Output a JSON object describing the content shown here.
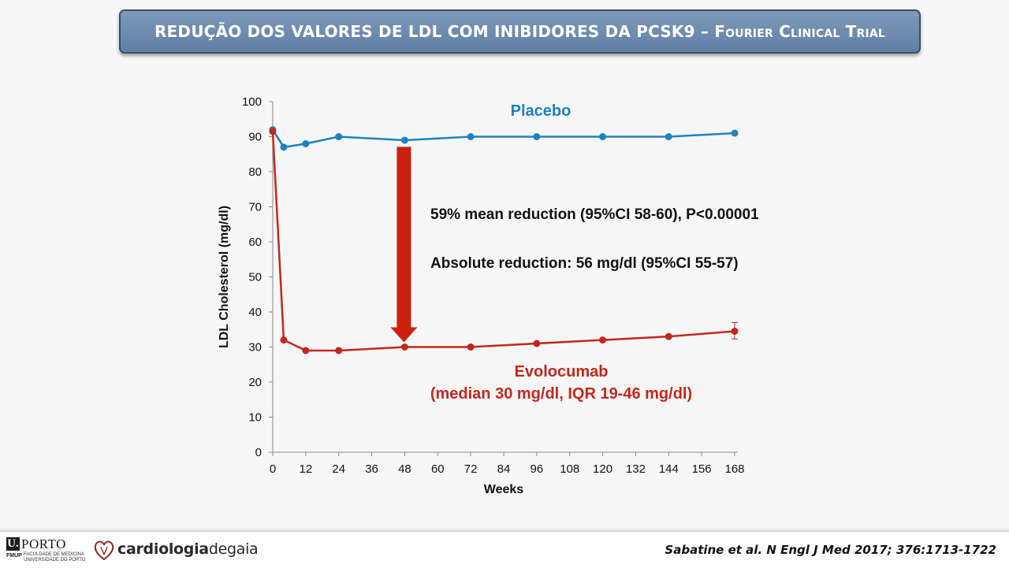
{
  "slide": {
    "title_main": "REDUÇÃO DOS VALORES DE LDL COM INIBIDORES DA PCSK9 – ",
    "title_sc": "Fourier Clinical Trial"
  },
  "annotations": {
    "placebo_label": "Placebo",
    "evolocumab_label": "Evolocumab",
    "evolocumab_sublabel": "(median 30 mg/dl, IQR 19-46 mg/dl)",
    "mean_reduction": "59% mean reduction (95%CI 58-60), P<0.00001",
    "absolute_reduction": "Absolute reduction: 56 mg/dl (95%CI 55-57)"
  },
  "chart_data": {
    "type": "line",
    "xlabel": "Weeks",
    "ylabel": "LDL Cholesterol (mg/dl)",
    "xlim": [
      0,
      168
    ],
    "ylim": [
      0,
      100
    ],
    "x_ticks": [
      0,
      12,
      24,
      36,
      48,
      60,
      72,
      84,
      96,
      108,
      120,
      132,
      144,
      156,
      168
    ],
    "y_ticks": [
      0,
      10,
      20,
      30,
      40,
      50,
      60,
      70,
      80,
      90,
      100
    ],
    "grid": false,
    "series": [
      {
        "name": "Placebo",
        "color": "#1f82c0",
        "x": [
          0,
          4,
          12,
          24,
          48,
          72,
          96,
          120,
          144,
          168
        ],
        "y": [
          92,
          87,
          88,
          90,
          89,
          90,
          90,
          90,
          90,
          91
        ]
      },
      {
        "name": "Evolocumab",
        "color": "#c4271d",
        "x": [
          0,
          4,
          12,
          24,
          48,
          72,
          96,
          120,
          144,
          168
        ],
        "y": [
          91.5,
          32,
          29,
          29,
          30,
          30,
          31,
          32,
          33,
          34.5
        ],
        "error_bar": {
          "x": 168,
          "low": 32.3,
          "high": 37
        }
      }
    ],
    "arrow": {
      "color": "#cc1f10",
      "from_y": 87,
      "to_y": 30,
      "x": 48
    }
  },
  "footer": {
    "uporto_mark": "U.",
    "uporto_word": "PORTO",
    "fmup_tag": "FMUP",
    "fmup_line1": "FACULDADE DE MEDICINA",
    "fmup_line2": "UNIVERSIDADE DO PORTO",
    "cdg_part1": "cardiologia",
    "cdg_part2": "degaia",
    "citation": "Sabatine et al. N Engl J Med 2017; 376:1713-1722"
  }
}
